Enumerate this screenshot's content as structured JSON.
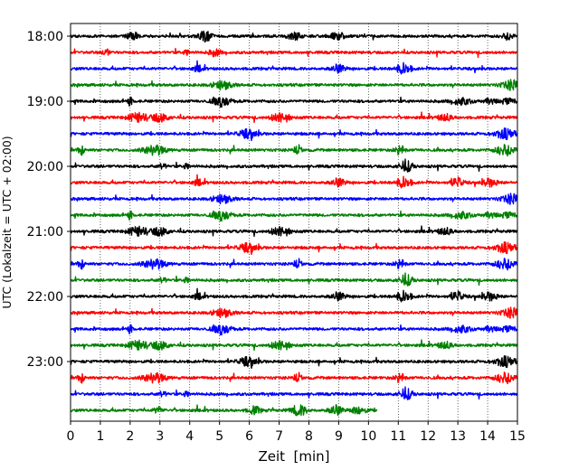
{
  "chart_data": {
    "type": "line",
    "title": "",
    "xlabel": "Zeit  [min]",
    "ylabel": "UTC (Lokalzeit = UTC + 02:00)",
    "xlim": [
      0,
      15
    ],
    "x_ticks": [
      "0",
      "1",
      "2",
      "3",
      "4",
      "5",
      "6",
      "7",
      "8",
      "9",
      "10",
      "11",
      "12",
      "13",
      "14",
      "15"
    ],
    "y_ticks": [
      "18:00",
      "19:00",
      "20:00",
      "21:00",
      "22:00",
      "23:00"
    ],
    "grid": "vertical-dotted",
    "trace_interval_min": 15,
    "trace_colors": [
      "#000000",
      "#ff0000",
      "#0000ff",
      "#008000"
    ],
    "trace_starts": [
      "18:00",
      "18:15",
      "18:30",
      "18:45",
      "19:00",
      "19:15",
      "19:30",
      "19:45",
      "20:00",
      "20:15",
      "20:30",
      "20:45",
      "21:00",
      "21:15",
      "21:30",
      "21:45",
      "22:00",
      "22:15",
      "22:30",
      "22:45",
      "23:00",
      "23:15",
      "23:30",
      "23:45"
    ],
    "last_trace_end_min": 10.3
  }
}
